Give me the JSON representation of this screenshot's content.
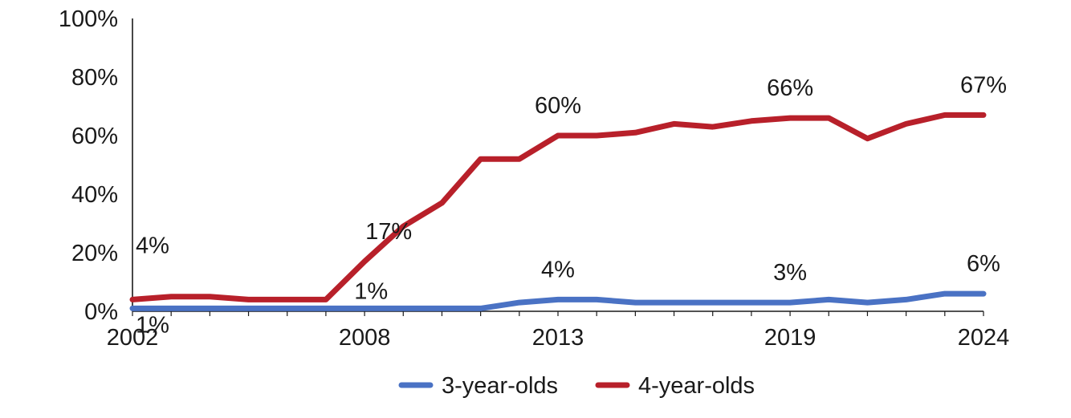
{
  "chart_data": {
    "type": "line",
    "x": [
      2002,
      2003,
      2004,
      2005,
      2006,
      2007,
      2008,
      2009,
      2010,
      2011,
      2012,
      2013,
      2014,
      2015,
      2016,
      2017,
      2018,
      2019,
      2020,
      2021,
      2022,
      2023,
      2024
    ],
    "x_tick_labels": [
      "2002",
      "2008",
      "2013",
      "2019",
      "2024"
    ],
    "y_tick_labels": [
      "0%",
      "20%",
      "40%",
      "60%",
      "80%",
      "100%"
    ],
    "ylim": [
      0,
      100
    ],
    "series": [
      {
        "name": "3-year-olds",
        "color": "#4a72c4",
        "values": [
          1,
          1,
          1,
          1,
          1,
          1,
          1,
          1,
          1,
          1,
          3,
          4,
          4,
          3,
          3,
          3,
          3,
          3,
          4,
          3,
          4,
          6,
          6
        ]
      },
      {
        "name": "4-year-olds",
        "color": "#b8202a",
        "values": [
          4,
          5,
          5,
          4,
          4,
          4,
          17,
          29,
          37,
          52,
          52,
          60,
          60,
          61,
          64,
          63,
          65,
          66,
          66,
          59,
          64,
          67,
          67
        ]
      }
    ],
    "annotations": [
      {
        "series": 0,
        "x": 2002,
        "text": "1%"
      },
      {
        "series": 0,
        "x": 2009,
        "text": "1%"
      },
      {
        "series": 0,
        "x": 2013,
        "text": "4%"
      },
      {
        "series": 0,
        "x": 2019,
        "text": "3%"
      },
      {
        "series": 0,
        "x": 2024,
        "text": "6%"
      },
      {
        "series": 1,
        "x": 2002,
        "text": "4%"
      },
      {
        "series": 1,
        "x": 2008,
        "text": "17%"
      },
      {
        "series": 1,
        "x": 2013,
        "text": "60%"
      },
      {
        "series": 1,
        "x": 2019,
        "text": "66%"
      },
      {
        "series": 1,
        "x": 2024,
        "text": "67%"
      }
    ],
    "grid": false,
    "legend_position": "bottom",
    "title": "",
    "xlabel": "",
    "ylabel": ""
  }
}
